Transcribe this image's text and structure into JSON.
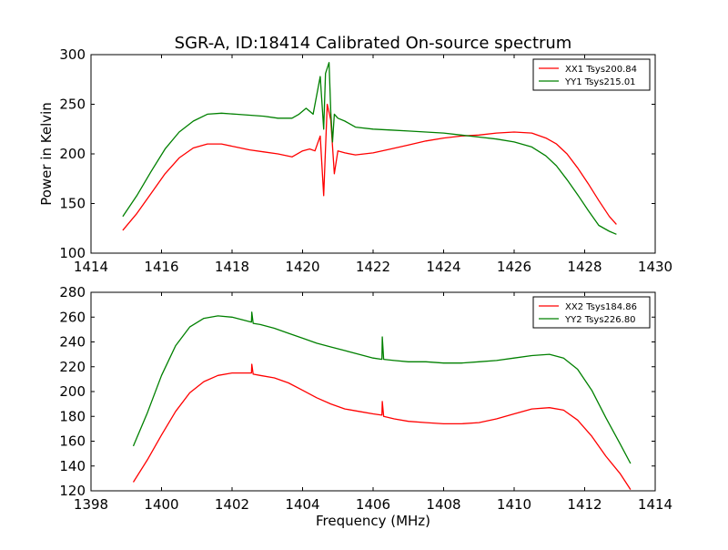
{
  "figure_title": "SGR-A, ID:18414 Calibrated On-source spectrum",
  "colors": {
    "xx": "#ff0000",
    "yy": "#008000",
    "axis": "#000000"
  },
  "chart_data": [
    {
      "type": "line",
      "title": "SGR-A, ID:18414 Calibrated On-source spectrum",
      "xlabel": "",
      "ylabel": "Power in Kelvin",
      "xlim": [
        1414,
        1430
      ],
      "ylim": [
        100,
        300
      ],
      "xticks": [
        "1414",
        "1416",
        "1418",
        "1420",
        "1422",
        "1424",
        "1426",
        "1428",
        "1430"
      ],
      "yticks": [
        "100",
        "150",
        "200",
        "250",
        "300"
      ],
      "legend_position": "top-right",
      "series": [
        {
          "name": "XX1 Tsys200.84",
          "color": "#ff0000",
          "x": [
            1414.9,
            1415.3,
            1415.7,
            1416.1,
            1416.5,
            1416.9,
            1417.3,
            1417.7,
            1418.1,
            1418.5,
            1418.9,
            1419.3,
            1419.7,
            1420.0,
            1420.2,
            1420.35,
            1420.5,
            1420.6,
            1420.7,
            1420.8,
            1420.9,
            1421.0,
            1421.2,
            1421.5,
            1422.0,
            1422.5,
            1423.0,
            1423.5,
            1424.0,
            1424.5,
            1425.0,
            1425.5,
            1426.0,
            1426.5,
            1426.9,
            1427.2,
            1427.5,
            1427.8,
            1428.1,
            1428.4,
            1428.7,
            1428.9
          ],
          "values": [
            123,
            140,
            160,
            180,
            196,
            206,
            210,
            210,
            207,
            204,
            202,
            200,
            197,
            203,
            205,
            203,
            218,
            158,
            250,
            234,
            180,
            203,
            201,
            199,
            201,
            205,
            209,
            213,
            216,
            218,
            219,
            221,
            222,
            221,
            216,
            210,
            200,
            186,
            170,
            153,
            137,
            129
          ]
        },
        {
          "name": "YY1 Tsys215.01",
          "color": "#008000",
          "x": [
            1414.9,
            1415.3,
            1415.7,
            1416.1,
            1416.5,
            1416.9,
            1417.3,
            1417.7,
            1418.1,
            1418.5,
            1418.9,
            1419.3,
            1419.7,
            1419.9,
            1420.1,
            1420.3,
            1420.5,
            1420.6,
            1420.65,
            1420.75,
            1420.8,
            1420.85,
            1420.9,
            1421.0,
            1421.2,
            1421.5,
            1422.0,
            1422.5,
            1423.0,
            1423.5,
            1424.0,
            1424.5,
            1425.0,
            1425.5,
            1426.0,
            1426.5,
            1426.9,
            1427.2,
            1427.5,
            1427.8,
            1428.1,
            1428.4,
            1428.7,
            1428.9
          ],
          "values": [
            137,
            158,
            182,
            205,
            222,
            233,
            240,
            241,
            240,
            239,
            238,
            236,
            236,
            240,
            246,
            240,
            278,
            225,
            281,
            292,
            242,
            212,
            240,
            236,
            233,
            227,
            225,
            224,
            223,
            222,
            221,
            219,
            217,
            215,
            212,
            207,
            198,
            188,
            174,
            159,
            143,
            128,
            122,
            119
          ]
        }
      ]
    },
    {
      "type": "line",
      "title": "",
      "xlabel": "Frequency (MHz)",
      "ylabel": "",
      "xlim": [
        1398,
        1414
      ],
      "ylim": [
        120,
        280
      ],
      "xticks": [
        "1398",
        "1400",
        "1402",
        "1404",
        "1406",
        "1408",
        "1410",
        "1412",
        "1414"
      ],
      "yticks": [
        "120",
        "140",
        "160",
        "180",
        "200",
        "220",
        "240",
        "260",
        "280"
      ],
      "legend_position": "top-right",
      "series": [
        {
          "name": "XX2 Tsys184.86",
          "color": "#ff0000",
          "x": [
            1399.2,
            1399.6,
            1400.0,
            1400.4,
            1400.8,
            1401.2,
            1401.6,
            1402.0,
            1402.4,
            1402.55,
            1402.56,
            1402.6,
            1402.8,
            1403.2,
            1403.6,
            1404.0,
            1404.4,
            1404.8,
            1405.2,
            1405.6,
            1406.0,
            1406.25,
            1406.26,
            1406.3,
            1406.6,
            1407.0,
            1407.5,
            1408.0,
            1408.5,
            1409.0,
            1409.5,
            1410.0,
            1410.5,
            1411.0,
            1411.4,
            1411.8,
            1412.2,
            1412.6,
            1413.0,
            1413.3
          ],
          "values": [
            127,
            145,
            165,
            184,
            199,
            208,
            213,
            215,
            215,
            215,
            222,
            214,
            213,
            211,
            207,
            201,
            195,
            190,
            186,
            184,
            182,
            181,
            192,
            180,
            178,
            176,
            175,
            174,
            174,
            175,
            178,
            182,
            186,
            187,
            185,
            177,
            164,
            148,
            134,
            121
          ]
        },
        {
          "name": "YY2 Tsys226.80",
          "color": "#008000",
          "x": [
            1399.2,
            1399.6,
            1400.0,
            1400.4,
            1400.8,
            1401.2,
            1401.6,
            1402.0,
            1402.4,
            1402.55,
            1402.56,
            1402.6,
            1402.8,
            1403.2,
            1403.6,
            1404.0,
            1404.4,
            1404.8,
            1405.2,
            1405.6,
            1406.0,
            1406.25,
            1406.26,
            1406.3,
            1406.6,
            1407.0,
            1407.5,
            1408.0,
            1408.5,
            1409.0,
            1409.5,
            1410.0,
            1410.5,
            1411.0,
            1411.4,
            1411.8,
            1412.2,
            1412.6,
            1413.0,
            1413.3
          ],
          "values": [
            156,
            183,
            213,
            237,
            252,
            259,
            261,
            260,
            257,
            256,
            264,
            255,
            254,
            251,
            247,
            243,
            239,
            236,
            233,
            230,
            227,
            226,
            244,
            226,
            225,
            224,
            224,
            223,
            223,
            224,
            225,
            227,
            229,
            230,
            227,
            218,
            201,
            179,
            158,
            142
          ]
        }
      ]
    }
  ]
}
